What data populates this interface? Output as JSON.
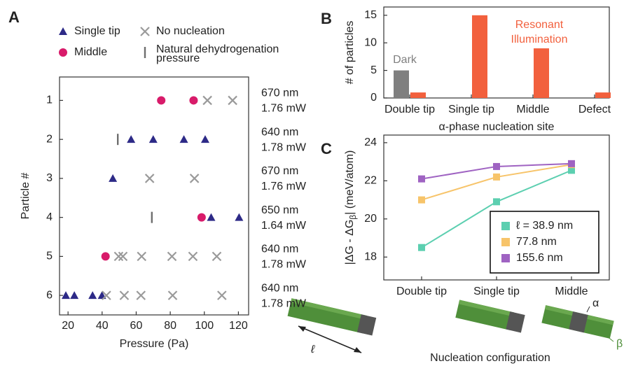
{
  "chart_data": [
    {
      "type": "scatter",
      "panel_label": "A",
      "xlabel": "Pressure (Pa)",
      "ylabel": "Particle #",
      "xlim": [
        15,
        126
      ],
      "xticks": [
        20,
        40,
        60,
        80,
        100,
        120
      ],
      "ylim": [
        6.5,
        0.4
      ],
      "yticks": [
        1,
        2,
        3,
        4,
        5,
        6
      ],
      "series": [
        {
          "name": "Single tip",
          "marker": "triangle",
          "color": "#2d2a87",
          "x": [
            57,
            70,
            88,
            100.5,
            46.3,
            104,
            120.4,
            18.7,
            23.7,
            34.4,
            39.9
          ],
          "y": [
            2,
            2,
            2,
            2,
            3,
            4,
            4,
            6,
            6,
            6,
            6
          ]
        },
        {
          "name": "No nucleation",
          "marker": "x",
          "color": "#9a9a9a",
          "x": [
            101.8,
            116.6,
            67.9,
            94.2,
            49.7,
            52.2,
            63.2,
            81,
            93.3,
            107.3,
            42.5,
            53,
            62.8,
            81.4,
            110.3
          ],
          "y": [
            1,
            1,
            3,
            3,
            5,
            5,
            5,
            5,
            5,
            5,
            6,
            6,
            6,
            6,
            6
          ]
        },
        {
          "name": "Middle",
          "marker": "circle",
          "color": "#d81b6a",
          "x": [
            74.7,
            93.7,
            98.4,
            42
          ],
          "y": [
            1,
            1,
            4,
            5
          ]
        },
        {
          "name": "Natural dehydrogenation pressure",
          "marker": "bar",
          "color": "#6e6e6e",
          "x": [
            49.2,
            69.2
          ],
          "y": [
            2,
            4
          ]
        }
      ],
      "row_labels": [
        [
          "670 nm",
          "1.76 mW"
        ],
        [
          "640 nm",
          "1.78 mW"
        ],
        [
          "670 nm",
          "1.76 mW"
        ],
        [
          "650 nm",
          "1.64 mW"
        ],
        [
          "640 nm",
          "1.78 mW"
        ],
        [
          "640 nm",
          "1.78 mW"
        ]
      ]
    },
    {
      "type": "bar",
      "panel_label": "B",
      "xlabel": "α-phase nucleation site",
      "ylabel": "# of particles",
      "categories": [
        "Double tip",
        "Single tip",
        "Middle",
        "Defect"
      ],
      "ylim": [
        0,
        16.5
      ],
      "yticks": [
        0,
        5,
        10,
        15
      ],
      "series": [
        {
          "name": "Dark",
          "color": "#7f7f7f",
          "values": [
            5,
            0,
            0,
            0
          ]
        },
        {
          "name": "Resonant Illumination",
          "color": "#f2603d",
          "values": [
            1,
            15,
            9,
            1
          ]
        }
      ]
    },
    {
      "type": "line",
      "panel_label": "C",
      "ylabel": {
        "main": "|ΔG - ΔG",
        "sub": "β",
        "tail": "| (meV/atom)"
      },
      "categories": [
        "Double tip",
        "Single tip",
        "Middle"
      ],
      "ylim": [
        16.8,
        24.4
      ],
      "yticks": [
        18,
        20,
        22,
        24
      ],
      "series": [
        {
          "name": "ℓ = 38.9 nm",
          "color": "#5ccfb0",
          "values": [
            18.5,
            20.9,
            22.55
          ]
        },
        {
          "name": "77.8 nm",
          "color": "#f7c46a",
          "values": [
            21.0,
            22.2,
            22.85
          ]
        },
        {
          "name": "155.6 nm",
          "color": "#9f63c2",
          "values": [
            22.1,
            22.75,
            22.9
          ]
        }
      ],
      "illustration": {
        "title": "Nucleation configuration",
        "length_label": "ℓ",
        "alpha_label": "α",
        "beta_label": "β"
      }
    }
  ]
}
